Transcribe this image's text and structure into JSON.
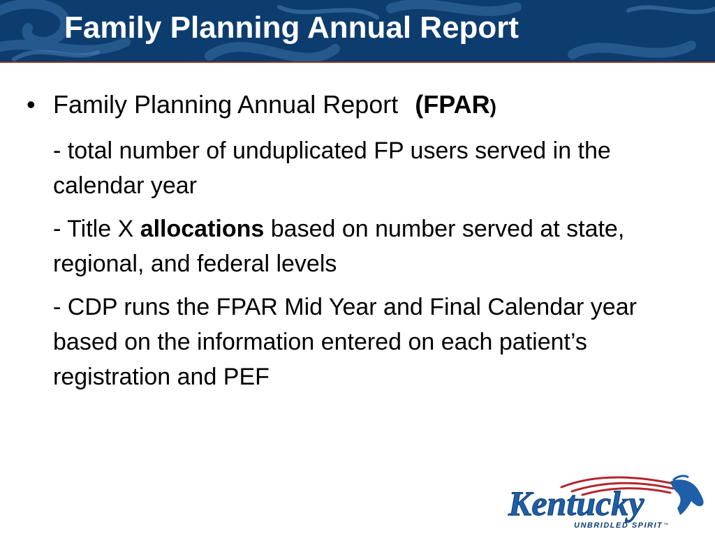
{
  "slide": {
    "title": "Family Planning Annual Report",
    "bullet": {
      "symbol": "•",
      "text": "Family Planning Annual Report",
      "open_paren": "(",
      "acronym": "FPAR",
      "close_paren": ")"
    },
    "subs": [
      {
        "text": "- total number of unduplicated FP users served in the calendar year"
      },
      {
        "pre": "- Title X ",
        "bold": "allocations",
        "post": " based on number served at state, regional, and federal levels"
      },
      {
        "text": "- CDP runs the FPAR Mid Year and Final Calendar year based on the information entered on each patient’s registration and PEF"
      }
    ],
    "logo": {
      "word": "Kentucky",
      "tagline": "UNBRIDLED SPIRIT",
      "trademark": "™",
      "icon": "horse-head-icon"
    }
  },
  "colors": {
    "title_bar": "#0d3d6e",
    "title_bar_border": "#8a2f24",
    "title_text": "#ffffff",
    "body_text": "#000000",
    "logo_blue": "#1f5ea8",
    "logo_red": "#b3262d"
  }
}
